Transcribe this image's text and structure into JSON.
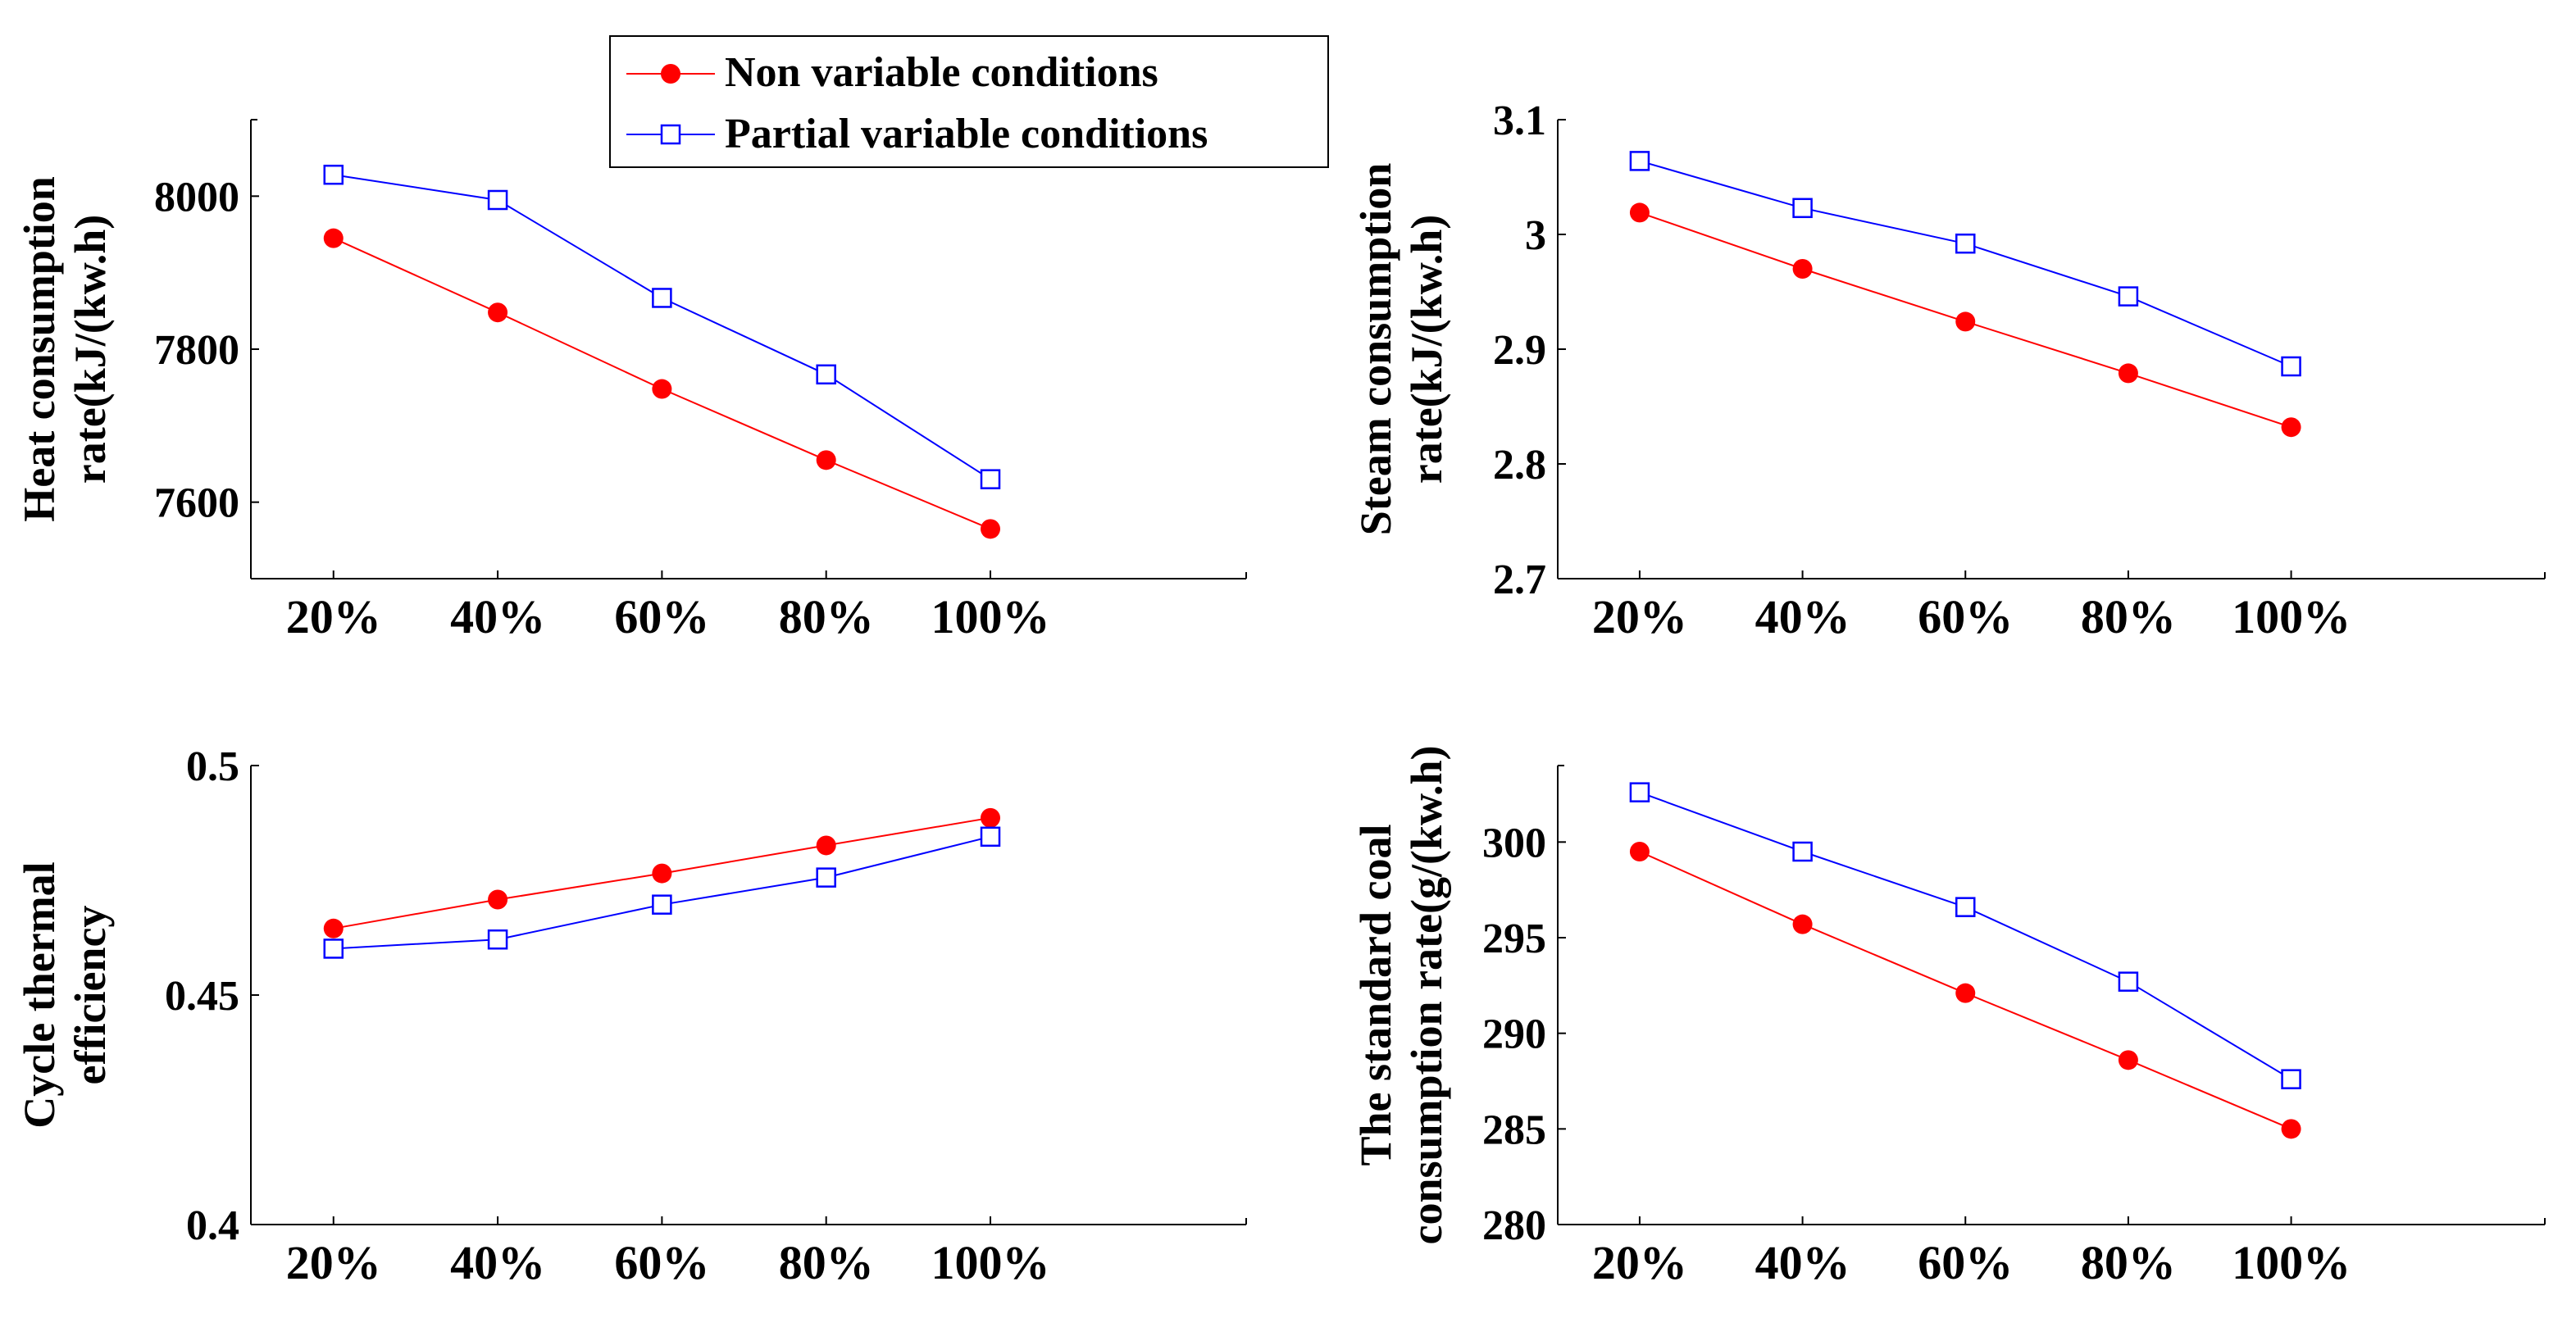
{
  "legend": {
    "entries": [
      {
        "label": "Non variable conditions",
        "color": "#ff0000",
        "marker": "filled-circle"
      },
      {
        "label": "Partial variable conditions",
        "color": "#0000ff",
        "marker": "open-square"
      }
    ]
  },
  "chart_data": [
    {
      "type": "line",
      "ylabel_lines": [
        "Heat consumption",
        "rate(kJ/(kw.h)"
      ],
      "categories": [
        "20%",
        "40%",
        "60%",
        "80%",
        "100%"
      ],
      "yticks": [
        "7600",
        "7800",
        "8000"
      ],
      "ylim": [
        7500,
        8100
      ],
      "series": [
        {
          "name": "Non variable conditions",
          "values": [
            7945,
            7848,
            7748,
            7655,
            7565
          ]
        },
        {
          "name": "Partial variable conditions",
          "values": [
            8028,
            7995,
            7867,
            7767,
            7630
          ]
        }
      ]
    },
    {
      "type": "line",
      "ylabel_lines": [
        "Steam consumption",
        "rate(kJ/(kw.h)"
      ],
      "categories": [
        "20%",
        "40%",
        "60%",
        "80%",
        "100%"
      ],
      "yticks": [
        "2.7",
        "2.8",
        "2.9",
        "3",
        "3.1"
      ],
      "ylim": [
        2.7,
        3.1
      ],
      "series": [
        {
          "name": "Non variable conditions",
          "values": [
            3.019,
            2.97,
            2.924,
            2.879,
            2.832
          ]
        },
        {
          "name": "Partial variable conditions",
          "values": [
            3.064,
            3.023,
            2.992,
            2.946,
            2.885
          ]
        }
      ]
    },
    {
      "type": "line",
      "ylabel_lines": [
        "Cycle thermal",
        "efficiency"
      ],
      "categories": [
        "20%",
        "40%",
        "60%",
        "80%",
        "100%"
      ],
      "yticks": [
        "0.4",
        "0.45",
        "0.5"
      ],
      "ylim": [
        0.4,
        0.5
      ],
      "series": [
        {
          "name": "Non variable conditions",
          "values": [
            0.4645,
            0.4708,
            0.4765,
            0.4826,
            0.4886
          ]
        },
        {
          "name": "Partial variable conditions",
          "values": [
            0.4601,
            0.4621,
            0.4697,
            0.4756,
            0.4845
          ]
        }
      ]
    },
    {
      "type": "line",
      "ylabel_lines": [
        "The standard coal",
        "consumption rate(g/(kw.h)"
      ],
      "categories": [
        "20%",
        "40%",
        "60%",
        "80%",
        "100%"
      ],
      "yticks": [
        "280",
        "285",
        "290",
        "295",
        "300"
      ],
      "ylim": [
        280,
        304
      ],
      "series": [
        {
          "name": "Non variable conditions",
          "values": [
            299.5,
            295.7,
            292.1,
            288.6,
            285.0
          ]
        },
        {
          "name": "Partial variable conditions",
          "values": [
            302.6,
            299.5,
            296.6,
            292.7,
            287.6
          ]
        }
      ]
    }
  ]
}
